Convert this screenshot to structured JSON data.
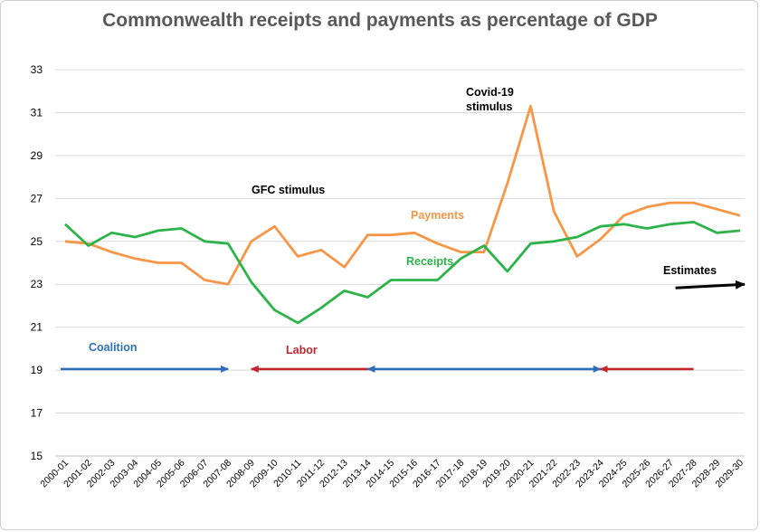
{
  "chart_data": {
    "type": "line",
    "title": "Commonwealth receipts and payments as percentage of GDP",
    "xlabel": "",
    "ylabel": "",
    "ylim": [
      15,
      33
    ],
    "yticks": [
      "15",
      "17",
      "19",
      "21",
      "23",
      "25",
      "27",
      "29",
      "31",
      "33"
    ],
    "grid": true,
    "categories": [
      "2000-01",
      "2001-02",
      "2002-03",
      "2003-04",
      "2004-05",
      "2005-06",
      "2006-07",
      "2007-08",
      "2008-09",
      "2009-10",
      "2010-11",
      "2011-12",
      "2012-13",
      "2013-14",
      "2014-15",
      "2015-16",
      "2016-17",
      "2017-18",
      "2018-19",
      "2019-20",
      "2020-21",
      "2021-22",
      "2022-23",
      "2023-24",
      "2024-25",
      "2025-26",
      "2026-27",
      "2027-28",
      "2028-29",
      "2029-30"
    ],
    "series": [
      {
        "name": "Receipts",
        "color": "#2db34a",
        "values": [
          25.8,
          24.8,
          25.4,
          25.2,
          25.5,
          25.6,
          25.0,
          24.9,
          23.1,
          21.8,
          21.2,
          21.9,
          22.7,
          22.4,
          23.2,
          23.2,
          23.2,
          24.2,
          24.8,
          23.6,
          24.9,
          25.0,
          25.2,
          25.7,
          25.8,
          25.6,
          25.8,
          25.9,
          25.4,
          25.5
        ]
      },
      {
        "name": "Payments",
        "color": "#f79646",
        "values": [
          25.0,
          24.9,
          24.5,
          24.2,
          24.0,
          24.0,
          23.2,
          23.0,
          25.0,
          25.7,
          24.3,
          24.6,
          23.8,
          25.3,
          25.3,
          25.4,
          24.9,
          24.5,
          24.5,
          27.7,
          31.3,
          26.4,
          24.3,
          25.1,
          26.2,
          26.6,
          26.8,
          26.8,
          26.5,
          26.2
        ]
      }
    ],
    "annotations": [
      {
        "text": "GFC stimulus",
        "color": "#000000"
      },
      {
        "text": "Covid-19",
        "color": "#000000"
      },
      {
        "text": "stimulus",
        "color": "#000000"
      },
      {
        "text": "Payments",
        "color": "#f79646"
      },
      {
        "text": "Receipts",
        "color": "#2db34a"
      },
      {
        "text": "Estimates",
        "color": "#000000"
      },
      {
        "text": "Coalition",
        "color": "#2f6fb8"
      },
      {
        "text": "Labor",
        "color": "#c0272d"
      }
    ],
    "government_periods": [
      {
        "label": "Coalition",
        "color": "#2f6fb8",
        "from": "2000-01",
        "to": "2007-08"
      },
      {
        "label": "Labor",
        "color": "#c0272d",
        "from": "2008-09",
        "to": "2013-14"
      },
      {
        "label": "Coalition",
        "color": "#2f6fb8",
        "from": "2013-14",
        "to": "2023-24"
      },
      {
        "label": "Labor",
        "color": "#c0272d",
        "from": "2023-24",
        "to": "2027-28"
      }
    ],
    "estimates_arrow": {
      "from": "2027-28",
      "to": "2029-30",
      "level": 23
    }
  }
}
